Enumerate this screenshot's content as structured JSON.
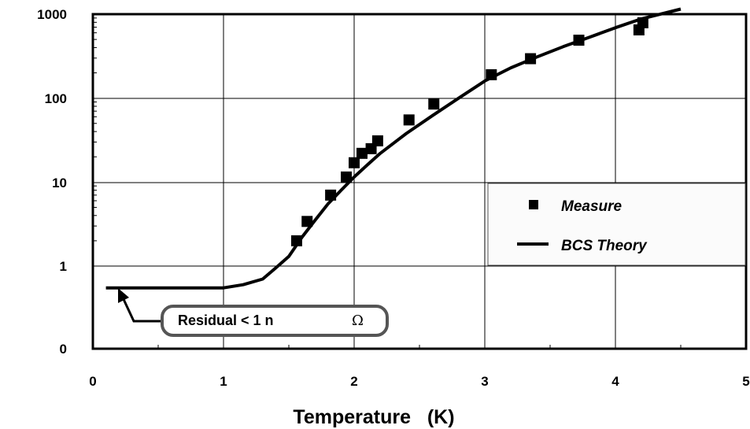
{
  "chart_data": {
    "type": "scatter",
    "title": "",
    "xlabel": "Temperature   (K)",
    "ylabel": "",
    "xlim": [
      0,
      5
    ],
    "ylim_labels": [
      "0",
      "1",
      "10",
      "100",
      "1000"
    ],
    "y_scale": "log",
    "x_ticks": [
      "0",
      "1",
      "2",
      "3",
      "4",
      "5"
    ],
    "grid": true,
    "legend_position": "right",
    "series": [
      {
        "name": "Measure",
        "kind": "markers",
        "color": "#000000",
        "points": [
          {
            "x": 1.56,
            "y": 2.0
          },
          {
            "x": 1.64,
            "y": 3.4
          },
          {
            "x": 1.82,
            "y": 7.0
          },
          {
            "x": 1.94,
            "y": 11.5
          },
          {
            "x": 2.0,
            "y": 17.0
          },
          {
            "x": 2.06,
            "y": 22.0
          },
          {
            "x": 2.13,
            "y": 25.0
          },
          {
            "x": 2.18,
            "y": 31.0
          },
          {
            "x": 2.42,
            "y": 55.0
          },
          {
            "x": 2.61,
            "y": 85.0
          },
          {
            "x": 3.05,
            "y": 190.0
          },
          {
            "x": 3.35,
            "y": 295.0
          },
          {
            "x": 3.72,
            "y": 490.0
          },
          {
            "x": 4.18,
            "y": 650.0
          },
          {
            "x": 4.21,
            "y": 790.0
          }
        ]
      },
      {
        "name": "BCS Theory",
        "kind": "line",
        "color": "#000000",
        "points": [
          {
            "x": 0.1,
            "y": 0.55
          },
          {
            "x": 1.0,
            "y": 0.55
          },
          {
            "x": 1.15,
            "y": 0.6
          },
          {
            "x": 1.3,
            "y": 0.7
          },
          {
            "x": 1.4,
            "y": 0.95
          },
          {
            "x": 1.5,
            "y": 1.3
          },
          {
            "x": 1.6,
            "y": 2.2
          },
          {
            "x": 1.7,
            "y": 3.5
          },
          {
            "x": 1.8,
            "y": 5.5
          },
          {
            "x": 1.9,
            "y": 8.0
          },
          {
            "x": 2.0,
            "y": 11.5
          },
          {
            "x": 2.1,
            "y": 16.0
          },
          {
            "x": 2.2,
            "y": 22.0
          },
          {
            "x": 2.4,
            "y": 38.0
          },
          {
            "x": 2.6,
            "y": 62.0
          },
          {
            "x": 2.8,
            "y": 100.0
          },
          {
            "x": 3.0,
            "y": 160.0
          },
          {
            "x": 3.2,
            "y": 230.0
          },
          {
            "x": 3.4,
            "y": 310.0
          },
          {
            "x": 3.6,
            "y": 410.0
          },
          {
            "x": 3.8,
            "y": 530.0
          },
          {
            "x": 4.0,
            "y": 690.0
          },
          {
            "x": 4.2,
            "y": 880.0
          },
          {
            "x": 4.5,
            "y": 1150.0
          }
        ]
      }
    ],
    "annotation": {
      "text": "Residual < 1 n",
      "symbol": "Ω",
      "points_to": {
        "x": 0.2,
        "y": 0.55
      }
    }
  }
}
